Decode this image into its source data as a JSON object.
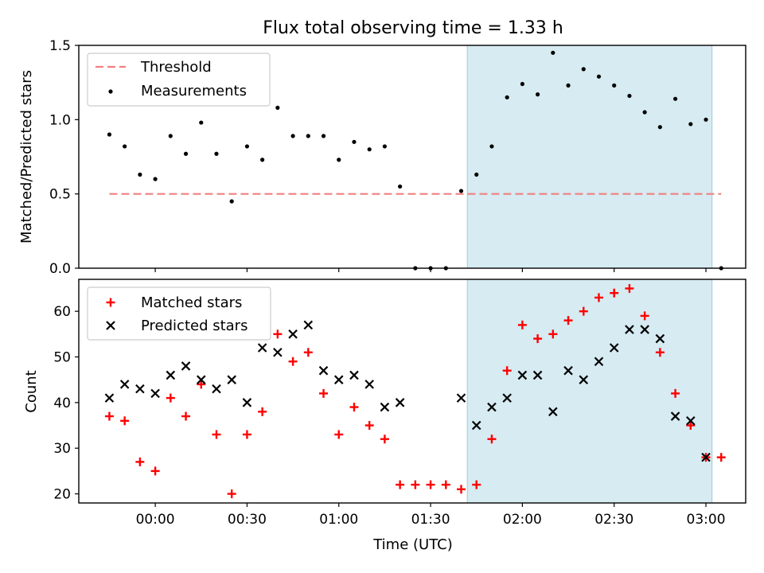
{
  "figure_title": "Flux total observing time = 1.33 h",
  "colors": {
    "threshold": "#f08080",
    "measurement": "#000000",
    "matched": "#ff0000",
    "predicted": "#000000",
    "shade": "#add8e6"
  },
  "chart_data": [
    {
      "type": "scatter",
      "ylabel": "Matched/Predicted stars",
      "xlabel": "",
      "xlim": [
        "23:35",
        "03:13"
      ],
      "ylim": [
        0,
        1.5
      ],
      "y_ticks": [
        "0.0",
        "0.5",
        "1.0",
        "1.5"
      ],
      "y_tick_values": [
        0,
        0.5,
        1.0,
        1.5
      ],
      "legend_position": "top-left",
      "shaded_region": [
        "01:42",
        "03:02"
      ],
      "threshold": {
        "name": "Threshold",
        "value": 0.5,
        "x": [
          "23:45",
          "03:05"
        ]
      },
      "series": [
        {
          "name": "Measurements",
          "x": [
            "23:45",
            "23:50",
            "23:55",
            "00:00",
            "00:05",
            "00:10",
            "00:15",
            "00:20",
            "00:25",
            "00:30",
            "00:35",
            "00:40",
            "00:45",
            "00:50",
            "00:55",
            "01:00",
            "01:05",
            "01:10",
            "01:15",
            "01:20",
            "01:25",
            "01:30",
            "01:35",
            "01:40",
            "01:45",
            "01:50",
            "01:55",
            "02:00",
            "02:05",
            "02:10",
            "02:15",
            "02:20",
            "02:25",
            "02:30",
            "02:35",
            "02:40",
            "02:45",
            "02:50",
            "02:55",
            "03:00",
            "03:05"
          ],
          "values": [
            0.9,
            0.82,
            0.63,
            0.6,
            0.89,
            0.77,
            0.98,
            0.77,
            0.45,
            0.82,
            0.73,
            1.08,
            0.89,
            0.89,
            0.89,
            0.73,
            0.85,
            0.8,
            0.82,
            0.55,
            0.0,
            0.0,
            0.0,
            0.52,
            0.63,
            0.82,
            1.15,
            1.24,
            1.17,
            1.45,
            1.23,
            1.34,
            1.29,
            1.23,
            1.16,
            1.05,
            0.95,
            1.14,
            0.97,
            1.0,
            0.0
          ]
        }
      ]
    },
    {
      "type": "scatter",
      "xlabel": "Time (UTC)",
      "ylabel": "Count",
      "xlim": [
        "23:35",
        "03:13"
      ],
      "ylim": [
        18,
        67
      ],
      "x_ticks": [
        "00:00",
        "00:30",
        "01:00",
        "01:30",
        "02:00",
        "02:30",
        "03:00"
      ],
      "y_ticks": [
        "20",
        "30",
        "40",
        "50",
        "60"
      ],
      "y_tick_values": [
        20,
        30,
        40,
        50,
        60
      ],
      "legend_position": "top-left",
      "shaded_region": [
        "01:42",
        "03:02"
      ],
      "series": [
        {
          "name": "Matched stars",
          "x": [
            "23:45",
            "23:50",
            "23:55",
            "00:00",
            "00:05",
            "00:10",
            "00:15",
            "00:20",
            "00:25",
            "00:30",
            "00:35",
            "00:40",
            "00:45",
            "00:50",
            "00:55",
            "01:00",
            "01:05",
            "01:10",
            "01:15",
            "01:20",
            "01:25",
            "01:30",
            "01:35",
            "01:40",
            "01:45",
            "01:50",
            "01:55",
            "02:00",
            "02:05",
            "02:10",
            "02:15",
            "02:20",
            "02:25",
            "02:30",
            "02:35",
            "02:40",
            "02:45",
            "02:50",
            "02:55",
            "03:00",
            "03:05"
          ],
          "values": [
            37,
            36,
            27,
            25,
            41,
            37,
            44,
            33,
            20,
            33,
            38,
            55,
            49,
            51,
            42,
            33,
            39,
            35,
            32,
            22,
            22,
            22,
            22,
            21,
            22,
            32,
            47,
            57,
            54,
            55,
            58,
            60,
            63,
            64,
            65,
            59,
            51,
            42,
            35,
            28,
            28
          ]
        },
        {
          "name": "Predicted stars",
          "x": [
            "23:45",
            "23:50",
            "23:55",
            "00:00",
            "00:05",
            "00:10",
            "00:15",
            "00:20",
            "00:25",
            "00:30",
            "00:35",
            "00:40",
            "00:45",
            "00:50",
            "00:55",
            "01:00",
            "01:05",
            "01:10",
            "01:15",
            "01:20",
            "01:40",
            "01:45",
            "01:50",
            "01:55",
            "02:00",
            "02:05",
            "02:10",
            "02:15",
            "02:20",
            "02:25",
            "02:30",
            "02:35",
            "02:40",
            "02:45",
            "02:50",
            "02:55",
            "03:00"
          ],
          "values": [
            41,
            44,
            43,
            42,
            46,
            48,
            45,
            43,
            45,
            40,
            52,
            51,
            55,
            57,
            47,
            45,
            46,
            44,
            39,
            40,
            41,
            35,
            39,
            41,
            46,
            46,
            38,
            47,
            45,
            49,
            52,
            56,
            56,
            54,
            37,
            36,
            28
          ]
        }
      ]
    }
  ]
}
